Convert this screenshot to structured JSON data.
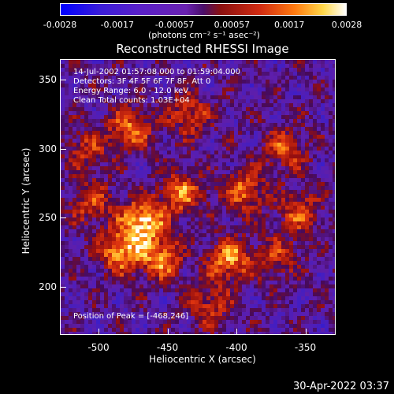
{
  "colorbar": {
    "ticks": [
      "-0.0028",
      "-0.0017",
      "-0.00057",
      "0.00057",
      "0.0017",
      "0.0028"
    ],
    "unit": "(photons cm⁻² s⁻¹ asec⁻²)"
  },
  "chart_data": {
    "type": "heatmap",
    "title": "Reconstructed RHESSI Image",
    "xlabel": "Heliocentric X (arcsec)",
    "ylabel": "Heliocentric Y (arcsec)",
    "xlim": [
      -528,
      -328
    ],
    "ylim": [
      165,
      365
    ],
    "xticks": [
      "-500",
      "-450",
      "-400",
      "-350"
    ],
    "yticks": [
      "200",
      "250",
      "300",
      "350"
    ],
    "xtick_values": [
      -500,
      -450,
      -400,
      -350
    ],
    "ytick_values": [
      200,
      250,
      300,
      350
    ],
    "annotations": [
      "14-Jul-2002 01:57:08.000 to 01:59:04.000",
      "Detectors: 3F 4F 5F 6F 7F 8F, Att 0",
      "Energy Range: 6.0 - 12.0 keV",
      "Clean     Total counts: 1.03E+04"
    ],
    "peak_text": "Position of Peak = [-468,246]",
    "peak": {
      "x": -468,
      "y": 246
    },
    "color_range": [
      -0.0028,
      0.0028
    ],
    "sources": [
      {
        "x": -468,
        "y": 248,
        "amp": 1.0
      },
      {
        "x": -485,
        "y": 226,
        "amp": 0.85
      },
      {
        "x": -440,
        "y": 268,
        "amp": 0.7
      },
      {
        "x": -455,
        "y": 221,
        "amp": 0.75
      },
      {
        "x": -405,
        "y": 220,
        "amp": 0.8
      },
      {
        "x": -395,
        "y": 270,
        "amp": 0.65
      },
      {
        "x": -478,
        "y": 315,
        "amp": 0.7
      },
      {
        "x": -506,
        "y": 262,
        "amp": 0.55
      },
      {
        "x": -435,
        "y": 325,
        "amp": 0.55
      },
      {
        "x": -365,
        "y": 300,
        "amp": 0.55
      },
      {
        "x": -355,
        "y": 255,
        "amp": 0.55
      },
      {
        "x": -510,
        "y": 300,
        "amp": 0.45
      },
      {
        "x": -420,
        "y": 187,
        "amp": 0.5
      },
      {
        "x": -370,
        "y": 222,
        "amp": 0.45
      }
    ]
  },
  "timestamp": "30-Apr-2022 03:37"
}
